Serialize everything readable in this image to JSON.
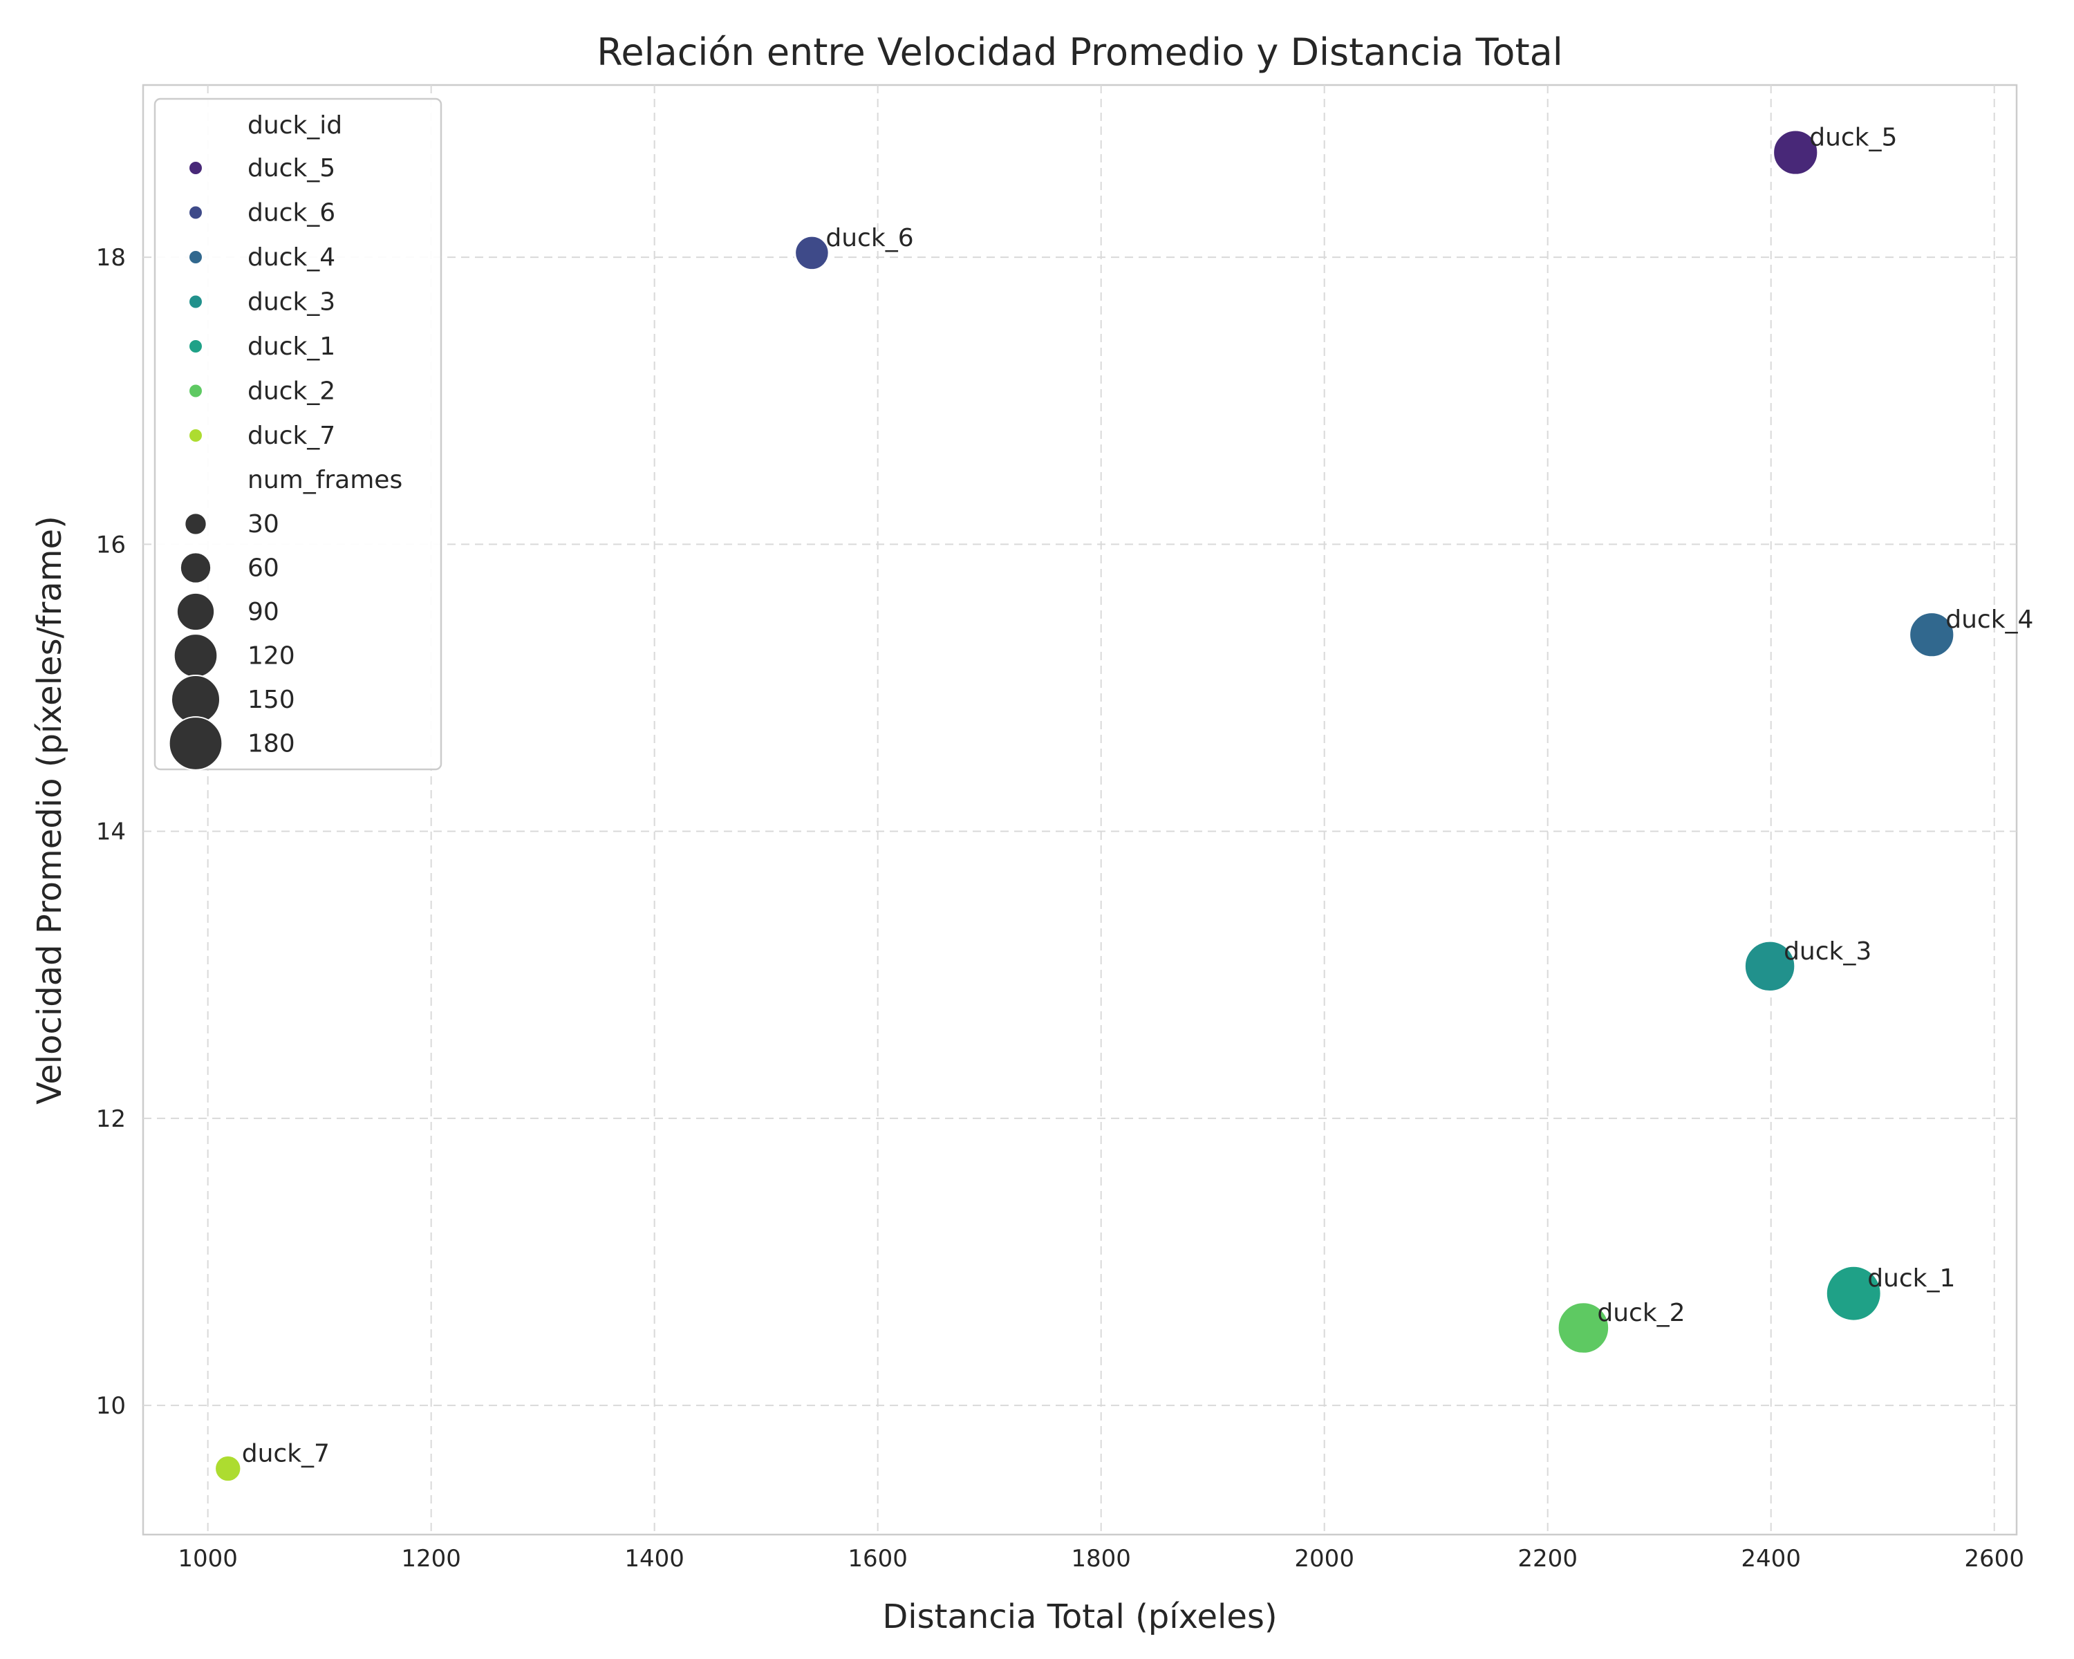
{
  "chart_data": {
    "type": "scatter",
    "title": "Relación entre Velocidad Promedio y Distancia Total",
    "xlabel": "Distancia Total (píxeles)",
    "ylabel": "Velocidad Promedio (píxeles/frame)",
    "xlim": [
      942,
      2620
    ],
    "ylim": [
      9.1,
      19.2
    ],
    "xticks": [
      1000,
      1200,
      1400,
      1600,
      1800,
      2000,
      2200,
      2400,
      2600
    ],
    "yticks": [
      10,
      12,
      14,
      16,
      18
    ],
    "grid": true,
    "legend_placement": "upper-left",
    "hue_title": "duck_id",
    "size_title": "num_frames",
    "size_legend": [
      30,
      60,
      90,
      120,
      150,
      180
    ],
    "points": [
      {
        "label": "duck_5",
        "x": 2422,
        "y": 18.73,
        "num_frames": 130,
        "color": "#482878"
      },
      {
        "label": "duck_6",
        "x": 1541,
        "y": 18.03,
        "num_frames": 75,
        "color": "#3e4a89"
      },
      {
        "label": "duck_4",
        "x": 2544,
        "y": 15.37,
        "num_frames": 130,
        "color": "#31688e"
      },
      {
        "label": "duck_3",
        "x": 2399,
        "y": 13.06,
        "num_frames": 165,
        "color": "#21918c"
      },
      {
        "label": "duck_1",
        "x": 2474,
        "y": 10.78,
        "num_frames": 195,
        "color": "#1fa187"
      },
      {
        "label": "duck_2",
        "x": 2232,
        "y": 10.54,
        "num_frames": 170,
        "color": "#5ec962"
      },
      {
        "label": "duck_7",
        "x": 1018,
        "y": 9.56,
        "num_frames": 45,
        "color": "#addc30"
      }
    ]
  }
}
